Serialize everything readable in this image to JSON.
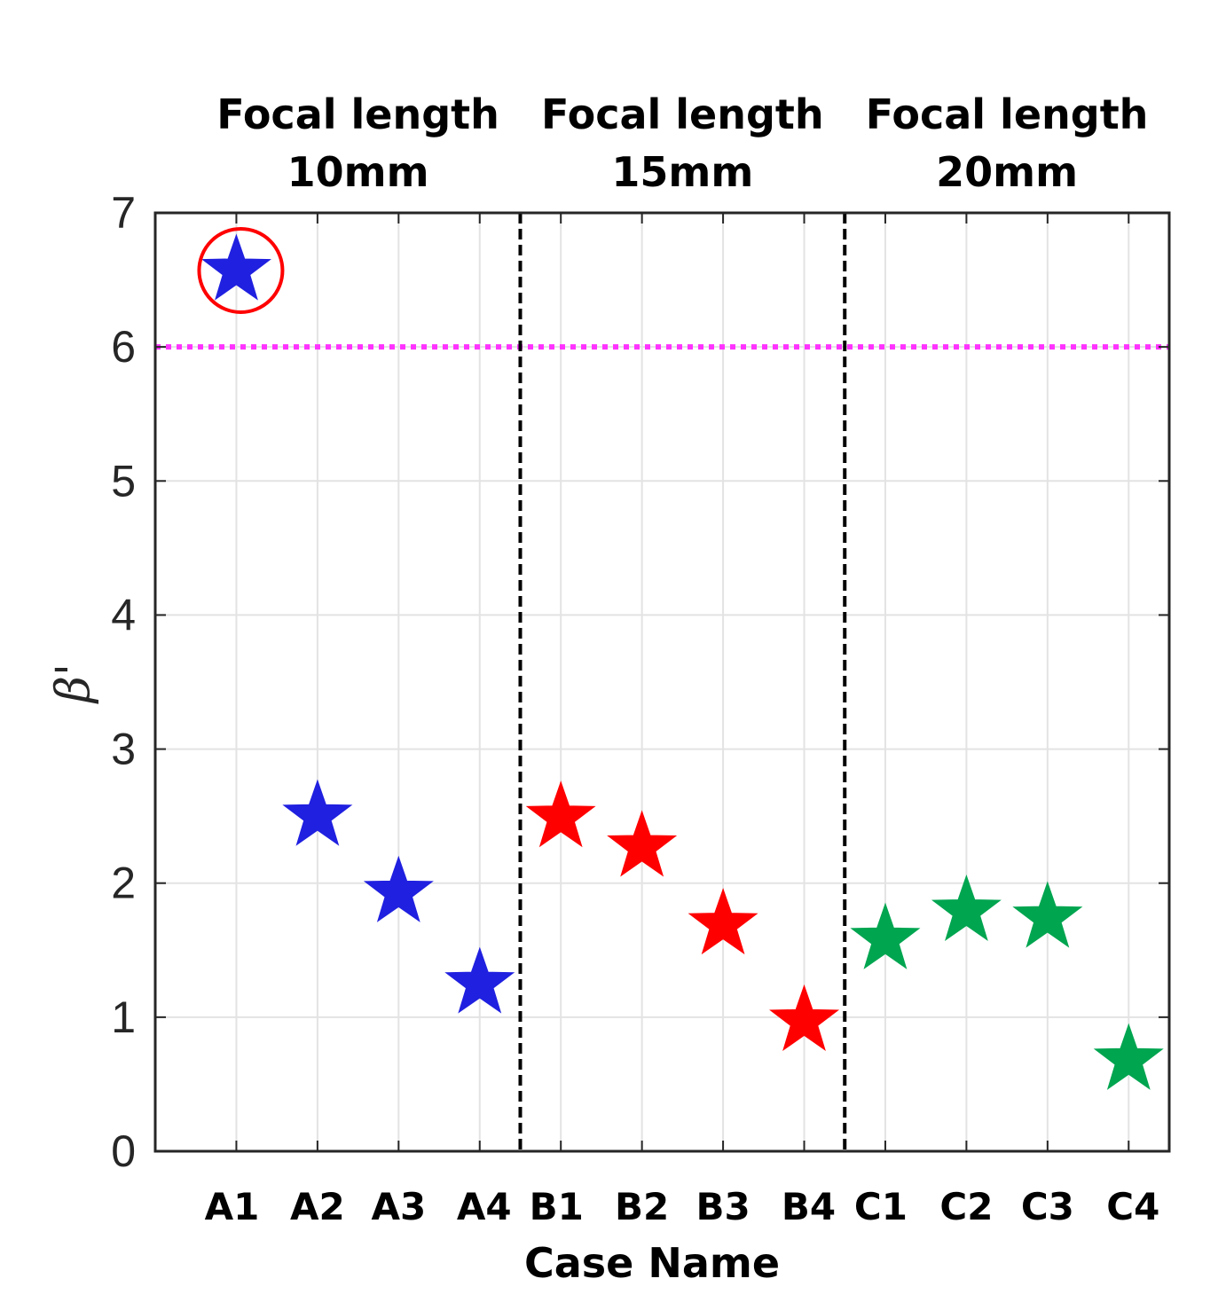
{
  "chart_data": {
    "type": "scatter",
    "xlabel": "Case Name",
    "ylabel": "β'",
    "ylim": [
      0,
      7
    ],
    "yticks": [
      "0",
      "1",
      "2",
      "3",
      "4",
      "5",
      "6",
      "7"
    ],
    "grid": true,
    "categories": [
      "A1",
      "A2",
      "A3",
      "A4",
      "B1",
      "B2",
      "B3",
      "B4",
      "C1",
      "C2",
      "C3",
      "C4"
    ],
    "group_labels": [
      {
        "line1": "Focal length",
        "line2": "10mm"
      },
      {
        "line1": "Focal length",
        "line2": "15mm"
      },
      {
        "line1": "Focal length",
        "line2": "20mm"
      }
    ],
    "series": [
      {
        "color": "#2020e0",
        "marker": "star",
        "x": [
          1,
          2,
          3,
          4
        ],
        "values": [
          6.57,
          2.5,
          1.93,
          1.25
        ]
      },
      {
        "color": "#ff0000",
        "marker": "star",
        "x": [
          5,
          6,
          7,
          8
        ],
        "values": [
          2.49,
          2.27,
          1.69,
          0.97
        ]
      },
      {
        "color": "#00a550",
        "marker": "star",
        "x": [
          9,
          10,
          11,
          12
        ],
        "values": [
          1.58,
          1.79,
          1.74,
          0.68
        ]
      }
    ],
    "reference_line": {
      "y": 6,
      "color": "#ff33ff",
      "style": "dotted"
    },
    "separators": {
      "x": [
        4.5,
        8.5
      ],
      "color": "#000000",
      "style": "dashed"
    },
    "highlight": {
      "x": 1,
      "y": 6.57,
      "shape": "circle",
      "color": "#ff0000"
    }
  }
}
